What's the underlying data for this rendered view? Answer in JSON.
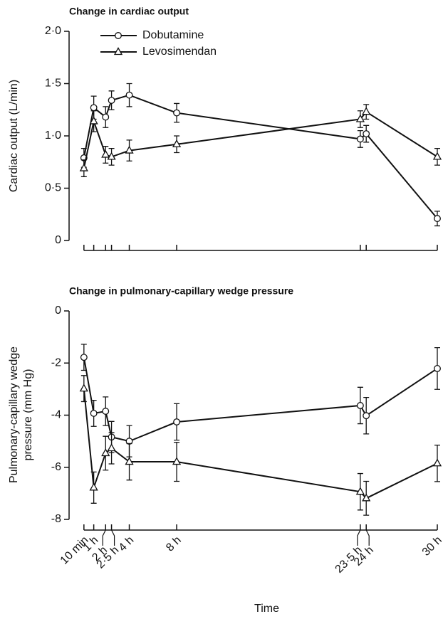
{
  "chart_data": [
    {
      "type": "line",
      "title": "Change in cardiac output",
      "ylabel": "Cardiac output (L/min)",
      "x": [
        0.17,
        1,
        2,
        2.5,
        4,
        8,
        23.5,
        24,
        30
      ],
      "xlim": [
        0,
        30
      ],
      "ylim": [
        0,
        2
      ],
      "yticks": [
        0,
        {
          "value": 0.5,
          "label": "0·5"
        },
        {
          "value": 1,
          "label": "1·0"
        },
        {
          "value": 1.5,
          "label": "1·5"
        },
        {
          "value": 2,
          "label": "2·0"
        }
      ],
      "legend": "top-left",
      "series": [
        {
          "name": "Dobutamine",
          "marker": "circle",
          "color": "#111111",
          "values": [
            0.79,
            1.27,
            1.18,
            1.34,
            1.39,
            1.22,
            0.97,
            1.02,
            0.21
          ],
          "errors": [
            0.09,
            0.11,
            0.1,
            0.09,
            0.11,
            0.09,
            0.08,
            0.08,
            0.07
          ]
        },
        {
          "name": "Levosimendan",
          "marker": "triangle",
          "color": "#111111",
          "values": [
            0.69,
            1.14,
            0.82,
            0.8,
            0.86,
            0.92,
            1.16,
            1.23,
            0.8
          ],
          "errors": [
            0.08,
            0.1,
            0.08,
            0.08,
            0.1,
            0.08,
            0.08,
            0.07,
            0.08
          ]
        }
      ]
    },
    {
      "type": "line",
      "title": "Change in pulmonary-capillary wedge pressure",
      "ylabel": [
        "Pulmonary-capillary wedge",
        "pressure (mm Hg)"
      ],
      "xlabel": "Time",
      "x": [
        0.17,
        1,
        2,
        2.5,
        4,
        8,
        23.5,
        24,
        30
      ],
      "xlim": [
        0,
        30
      ],
      "xticks": [
        {
          "value": 0.17,
          "label": "10 min"
        },
        {
          "value": 1,
          "label": "1 h"
        },
        {
          "value": 2,
          "label": "2 h"
        },
        {
          "value": 2.5,
          "label": "2·5 h"
        },
        {
          "value": 4,
          "label": "4 h"
        },
        {
          "value": 8,
          "label": "8 h"
        },
        {
          "value": 23.5,
          "label": "23·5 h"
        },
        {
          "value": 24,
          "label": "24 h"
        },
        {
          "value": 30,
          "label": "30 h"
        }
      ],
      "ylim": [
        -8,
        0
      ],
      "yticks": [
        -8,
        -6,
        -4,
        -2,
        0
      ],
      "series": [
        {
          "marker": "circle",
          "color": "#111111",
          "values": [
            -1.78,
            -3.93,
            -3.85,
            -4.84,
            -5.0,
            -4.26,
            -3.63,
            -4.02,
            -2.21
          ],
          "errors": [
            0.5,
            0.5,
            0.55,
            0.6,
            0.6,
            0.7,
            0.7,
            0.7,
            0.8
          ]
        },
        {
          "marker": "triangle",
          "color": "#111111",
          "values": [
            -2.98,
            -6.78,
            -5.46,
            -5.27,
            -5.79,
            -5.79,
            -6.94,
            -7.19,
            -5.85
          ],
          "errors": [
            0.5,
            0.6,
            0.65,
            0.6,
            0.7,
            0.75,
            0.7,
            0.65,
            0.7
          ]
        }
      ]
    }
  ]
}
